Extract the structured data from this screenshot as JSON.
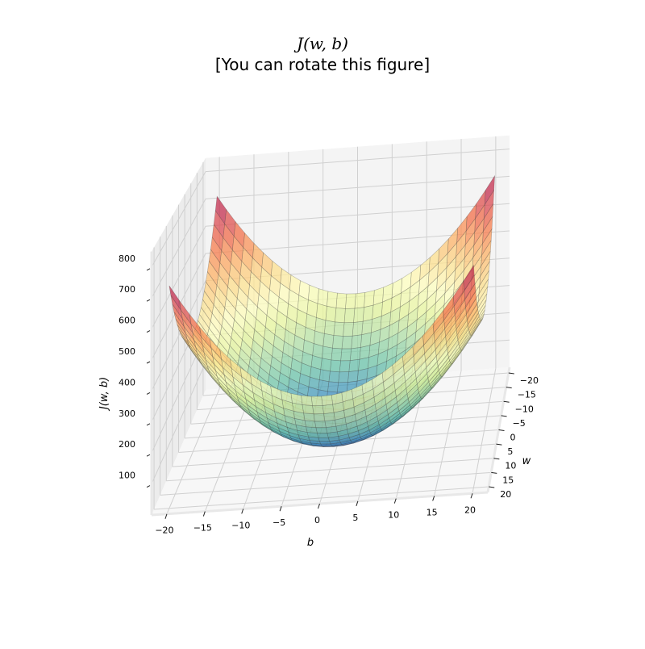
{
  "chart_data": {
    "type": "surface",
    "title": "J(w, b)",
    "subtitle": "[You can rotate this figure]",
    "xlabel": "b",
    "ylabel": "w",
    "zlabel": "J(w, b)",
    "x_ticks": [
      "−20",
      "−15",
      "−10",
      "−5",
      "0",
      "5",
      "10",
      "15",
      "20"
    ],
    "y_ticks": [
      "−20",
      "−15",
      "−10",
      "−5",
      "0",
      "5",
      "10",
      "15",
      "20"
    ],
    "z_ticks": [
      "100",
      "200",
      "300",
      "400",
      "500",
      "600",
      "700",
      "800"
    ],
    "xlim": [
      -22,
      22
    ],
    "ylim": [
      -22,
      22
    ],
    "zlim": [
      0,
      850
    ],
    "colormap": "Spectral_r",
    "grid": true
  }
}
